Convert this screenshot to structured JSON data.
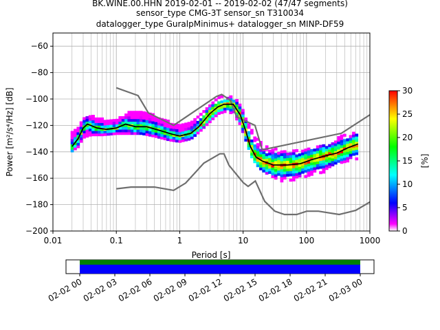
{
  "title_lines": [
    "BK.WINE.00.HHN   2019-02-01 -- 2019-02-02  (47/47 segments)",
    "sensor_type CMG-3T sensor_sn T310034",
    "datalogger_type GuralpMinimus+ datalogger_sn MINP-DF59"
  ],
  "chart_data": {
    "type": "heatmap",
    "subtype": "probabilistic power spectral density",
    "xlabel": "Period [s]",
    "ylabel": "Power [m²/s⁴/Hz] [dB]",
    "xscale": "log",
    "xlim": [
      0.01,
      1000
    ],
    "ylim": [
      -200,
      -50
    ],
    "x_ticks": [
      0.01,
      0.1,
      1,
      10,
      100,
      1000
    ],
    "x_tick_labels": [
      "0.01",
      "0.1",
      "1",
      "10",
      "100",
      "1000"
    ],
    "y_ticks": [
      -200,
      -180,
      -160,
      -140,
      -120,
      -100,
      -80,
      -60
    ],
    "grid": true,
    "colorbar": {
      "label": "[%]",
      "range": [
        0,
        30
      ],
      "ticks": [
        0,
        5,
        10,
        15,
        20,
        25,
        30
      ],
      "colors": [
        "#ffffff",
        "#ff00ff",
        "#0000ff",
        "#00ffff",
        "#00ff00",
        "#ffff00",
        "#ff8000",
        "#ff0000"
      ]
    },
    "noise_model_high": [
      {
        "x": 0.1,
        "y": -91.5
      },
      {
        "x": 0.22,
        "y": -97.4
      },
      {
        "x": 0.32,
        "y": -110.5
      },
      {
        "x": 0.8,
        "y": -120
      },
      {
        "x": 3.8,
        "y": -98
      },
      {
        "x": 4.6,
        "y": -96.5
      },
      {
        "x": 6.3,
        "y": -101
      },
      {
        "x": 7.9,
        "y": -113.5
      },
      {
        "x": 15.4,
        "y": -120
      },
      {
        "x": 20,
        "y": -138.5
      },
      {
        "x": 354.8,
        "y": -126
      },
      {
        "x": 1000,
        "y": -112
      }
    ],
    "noise_model_low": [
      {
        "x": 0.1,
        "y": -168
      },
      {
        "x": 0.17,
        "y": -166.7
      },
      {
        "x": 0.4,
        "y": -166.7
      },
      {
        "x": 0.8,
        "y": -169.2
      },
      {
        "x": 1.24,
        "y": -163.7
      },
      {
        "x": 2.4,
        "y": -148.6
      },
      {
        "x": 4.3,
        "y": -141.5
      },
      {
        "x": 5.0,
        "y": -141.5
      },
      {
        "x": 6.0,
        "y": -150.2
      },
      {
        "x": 10.0,
        "y": -163.3
      },
      {
        "x": 12.0,
        "y": -166.2
      },
      {
        "x": 15.6,
        "y": -162.1
      },
      {
        "x": 21.9,
        "y": -177.5
      },
      {
        "x": 31.6,
        "y": -185
      },
      {
        "x": 45,
        "y": -187.5
      },
      {
        "x": 70,
        "y": -187.5
      },
      {
        "x": 101,
        "y": -185
      },
      {
        "x": 154,
        "y": -185
      },
      {
        "x": 328,
        "y": -187.5
      },
      {
        "x": 600,
        "y": -184.4
      },
      {
        "x": 1000,
        "y": -178
      }
    ],
    "median": [
      {
        "x": 0.02,
        "y": -136
      },
      {
        "x": 0.025,
        "y": -130
      },
      {
        "x": 0.03,
        "y": -122
      },
      {
        "x": 0.035,
        "y": -119
      },
      {
        "x": 0.05,
        "y": -122
      },
      {
        "x": 0.07,
        "y": -123
      },
      {
        "x": 0.1,
        "y": -122
      },
      {
        "x": 0.14,
        "y": -119
      },
      {
        "x": 0.2,
        "y": -121
      },
      {
        "x": 0.3,
        "y": -121
      },
      {
        "x": 0.5,
        "y": -124
      },
      {
        "x": 0.8,
        "y": -127
      },
      {
        "x": 1.0,
        "y": -128
      },
      {
        "x": 1.5,
        "y": -126
      },
      {
        "x": 2.0,
        "y": -121
      },
      {
        "x": 3.0,
        "y": -111
      },
      {
        "x": 4.0,
        "y": -106
      },
      {
        "x": 5.0,
        "y": -104
      },
      {
        "x": 7.0,
        "y": -104
      },
      {
        "x": 9.0,
        "y": -112
      },
      {
        "x": 11.0,
        "y": -124
      },
      {
        "x": 13.0,
        "y": -136
      },
      {
        "x": 16.0,
        "y": -144
      },
      {
        "x": 20.0,
        "y": -147
      },
      {
        "x": 30.0,
        "y": -150
      },
      {
        "x": 50.0,
        "y": -150
      },
      {
        "x": 80.0,
        "y": -149
      },
      {
        "x": 120.0,
        "y": -146
      },
      {
        "x": 200.0,
        "y": -143
      },
      {
        "x": 300.0,
        "y": -141
      },
      {
        "x": 450.0,
        "y": -137
      },
      {
        "x": 650.0,
        "y": -134
      }
    ],
    "density_band": [
      {
        "x": 0.019,
        "lo": -141,
        "hi": -127
      },
      {
        "x": 0.025,
        "lo": -137,
        "hi": -122
      },
      {
        "x": 0.03,
        "lo": -130,
        "hi": -114
      },
      {
        "x": 0.04,
        "lo": -128,
        "hi": -113
      },
      {
        "x": 0.06,
        "lo": -128,
        "hi": -116
      },
      {
        "x": 0.1,
        "lo": -127,
        "hi": -116
      },
      {
        "x": 0.15,
        "lo": -127,
        "hi": -111
      },
      {
        "x": 0.25,
        "lo": -127,
        "hi": -109
      },
      {
        "x": 0.4,
        "lo": -129,
        "hi": -113
      },
      {
        "x": 0.7,
        "lo": -132,
        "hi": -118
      },
      {
        "x": 1.0,
        "lo": -133,
        "hi": -121
      },
      {
        "x": 1.5,
        "lo": -131,
        "hi": -119
      },
      {
        "x": 2.0,
        "lo": -126,
        "hi": -113
      },
      {
        "x": 3.0,
        "lo": -118,
        "hi": -104
      },
      {
        "x": 4.0,
        "lo": -112,
        "hi": -100
      },
      {
        "x": 5.5,
        "lo": -110,
        "hi": -98
      },
      {
        "x": 7.0,
        "lo": -112,
        "hi": -100
      },
      {
        "x": 9.0,
        "lo": -120,
        "hi": -104
      },
      {
        "x": 11.0,
        "lo": -132,
        "hi": -112
      },
      {
        "x": 14.0,
        "lo": -146,
        "hi": -126
      },
      {
        "x": 18.0,
        "lo": -153,
        "hi": -132
      },
      {
        "x": 25.0,
        "lo": -158,
        "hi": -137
      },
      {
        "x": 40.0,
        "lo": -163,
        "hi": -140
      },
      {
        "x": 70.0,
        "lo": -162,
        "hi": -140
      },
      {
        "x": 120.0,
        "lo": -158,
        "hi": -138
      },
      {
        "x": 200.0,
        "lo": -156,
        "hi": -134
      },
      {
        "x": 350.0,
        "lo": -149,
        "hi": -129
      },
      {
        "x": 650.0,
        "lo": -146,
        "hi": -126
      }
    ],
    "coverage": {
      "tick_labels": [
        "02-02 00",
        "02-02 03",
        "02-02 06",
        "02-02 09",
        "02-02 12",
        "02-02 15",
        "02-02 18",
        "02-02 21",
        "02-03 00"
      ],
      "bars": [
        {
          "start": 0,
          "end": 1,
          "color": "#008000"
        },
        {
          "start": 0,
          "end": 1,
          "color": "#0000ff"
        }
      ]
    }
  }
}
